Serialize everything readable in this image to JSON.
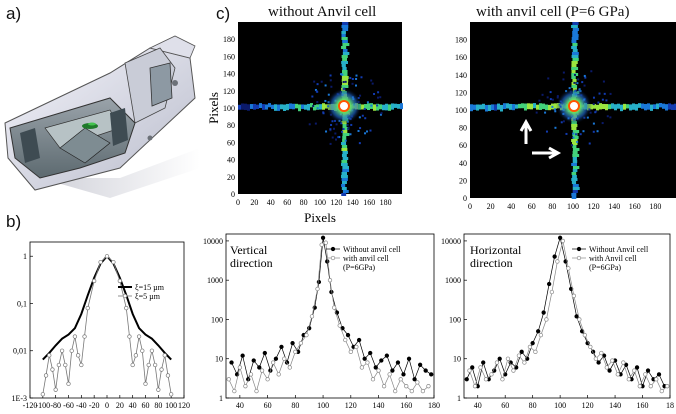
{
  "panel_labels": {
    "a": "a)",
    "b": "b)",
    "c": "c)"
  },
  "heatmaps": [
    {
      "title": "without Anvil cell",
      "xlabel": "Pixels",
      "ylabel": "Pixels",
      "xticks": [
        "0",
        "20",
        "40",
        "60",
        "80",
        "100",
        "120",
        "140",
        "160",
        "180"
      ],
      "yticks": [
        "0",
        "20",
        "40",
        "60",
        "80",
        "100",
        "120",
        "140",
        "160",
        "180"
      ]
    },
    {
      "title": "with anvil cell (P=6 GPa)",
      "xlabel": "",
      "ylabel": "",
      "xticks": [
        "0",
        "20",
        "40",
        "60",
        "80",
        "100",
        "120",
        "140",
        "160",
        "180"
      ],
      "yticks": [
        "0",
        "20",
        "40",
        "60",
        "80",
        "100",
        "120",
        "140",
        "160",
        "180"
      ]
    }
  ],
  "chart_data": [
    {
      "type": "line",
      "title": "",
      "xticks": [
        "-120",
        "-100",
        "-80",
        "-60",
        "-40",
        "-20",
        "0",
        "20",
        "40",
        "60",
        "80",
        "100",
        "120"
      ],
      "yticks": [
        "1",
        "0,1",
        "0,01",
        "1E-3"
      ],
      "xlim": [
        -120,
        120
      ],
      "ylim": [
        0.001,
        2
      ],
      "yscale": "log",
      "legend": [
        "ξ=15 µm",
        "ξ=5 µm"
      ],
      "series": [
        {
          "name": "ξ=15 µm",
          "x": [
            -100,
            -90,
            -80,
            -70,
            -60,
            -50,
            -40,
            -30,
            -20,
            -10,
            0,
            10,
            20,
            30,
            40,
            50,
            60,
            70,
            80,
            90,
            100
          ],
          "values": [
            0.0065,
            0.009,
            0.013,
            0.018,
            0.022,
            0.03,
            0.06,
            0.15,
            0.35,
            0.7,
            1.0,
            0.7,
            0.35,
            0.15,
            0.06,
            0.03,
            0.022,
            0.018,
            0.013,
            0.009,
            0.0065
          ]
        },
        {
          "name": "ξ=5 µm",
          "x": [
            -100,
            -95,
            -90,
            -85,
            -80,
            -75,
            -70,
            -65,
            -60,
            -55,
            -50,
            -45,
            -40,
            -35,
            -30,
            -20,
            -10,
            0,
            10,
            20,
            30,
            35,
            40,
            45,
            50,
            55,
            60,
            65,
            70,
            75,
            80,
            85,
            90,
            95,
            100
          ],
          "values": [
            0.0012,
            0.003,
            0.008,
            0.004,
            0.0015,
            0.005,
            0.01,
            0.005,
            0.002,
            0.01,
            0.02,
            0.008,
            0.005,
            0.02,
            0.08,
            0.3,
            0.75,
            1.0,
            0.75,
            0.3,
            0.08,
            0.02,
            0.005,
            0.008,
            0.02,
            0.01,
            0.002,
            0.005,
            0.01,
            0.005,
            0.0015,
            0.004,
            0.008,
            0.003,
            0.0012
          ]
        }
      ]
    },
    {
      "type": "line",
      "title": "Vertical direction",
      "title_lines": [
        "Vertical",
        "direction"
      ],
      "xticks": [
        "40",
        "60",
        "80",
        "100",
        "120",
        "140",
        "160",
        "180"
      ],
      "yticks": [
        "10000",
        "1000",
        "100",
        "10",
        "1"
      ],
      "xlim": [
        30,
        180
      ],
      "ylim": [
        1,
        15000
      ],
      "yscale": "log",
      "legend": [
        "Without anvil cell",
        "with anvil cell",
        "(P=6GPa)"
      ],
      "series": [
        {
          "name": "Without anvil cell",
          "x": [
            34,
            38,
            42,
            46,
            50,
            54,
            58,
            62,
            66,
            70,
            74,
            78,
            82,
            86,
            90,
            94,
            97,
            100,
            103,
            106,
            110,
            114,
            118,
            122,
            126,
            130,
            134,
            138,
            142,
            146,
            150,
            154,
            158,
            162,
            166,
            170,
            174,
            178
          ],
          "values": [
            8,
            4,
            12,
            3,
            9,
            6,
            14,
            5,
            10,
            20,
            8,
            25,
            15,
            40,
            60,
            200,
            900,
            12000,
            3000,
            500,
            150,
            60,
            40,
            20,
            30,
            10,
            14,
            6,
            9,
            12,
            5,
            8,
            4,
            10,
            3,
            7,
            5,
            4
          ]
        },
        {
          "name": "with anvil cell",
          "x": [
            32,
            36,
            40,
            44,
            48,
            52,
            56,
            60,
            64,
            68,
            72,
            76,
            80,
            84,
            88,
            92,
            96,
            99,
            102,
            105,
            108,
            112,
            116,
            120,
            124,
            128,
            132,
            136,
            140,
            144,
            148,
            152,
            156,
            160,
            164,
            168,
            172,
            176
          ],
          "values": [
            3,
            1.5,
            6,
            2,
            4,
            1.5,
            5,
            3,
            8,
            4,
            10,
            6,
            15,
            25,
            40,
            120,
            600,
            8000,
            9000,
            1000,
            200,
            70,
            30,
            15,
            20,
            6,
            8,
            3,
            5,
            2,
            4,
            1.5,
            3,
            2,
            1.5,
            2.5,
            1.5,
            2
          ]
        }
      ]
    },
    {
      "type": "line",
      "title": "Horizontal direction",
      "title_lines": [
        "Horizontal",
        "direction"
      ],
      "xticks": [
        "40",
        "60",
        "80",
        "100",
        "120",
        "140",
        "160",
        "18"
      ],
      "yticks": [
        "10000",
        "1000",
        "100",
        "10",
        "1"
      ],
      "xlim": [
        30,
        180
      ],
      "ylim": [
        1,
        15000
      ],
      "yscale": "log",
      "legend": [
        "Without Anvil cell",
        "with Anvil cell",
        "(P=6GPa)"
      ],
      "series": [
        {
          "name": "Without Anvil cell",
          "x": [
            32,
            36,
            40,
            44,
            48,
            52,
            56,
            60,
            64,
            68,
            72,
            76,
            80,
            84,
            88,
            92,
            96,
            100,
            104,
            108,
            112,
            116,
            120,
            124,
            128,
            132,
            136,
            140,
            144,
            148,
            152,
            156,
            160,
            164,
            168,
            172,
            176
          ],
          "values": [
            3,
            6,
            2,
            8,
            3,
            5,
            10,
            4,
            8,
            6,
            15,
            10,
            25,
            50,
            150,
            800,
            4000,
            12000,
            3000,
            600,
            120,
            50,
            25,
            15,
            8,
            12,
            5,
            9,
            4,
            7,
            3,
            6,
            2,
            5,
            3,
            4,
            2
          ]
        },
        {
          "name": "with Anvil cell",
          "x": [
            34,
            38,
            42,
            46,
            50,
            54,
            58,
            62,
            66,
            70,
            74,
            78,
            82,
            86,
            90,
            94,
            98,
            102,
            106,
            110,
            114,
            118,
            122,
            126,
            130,
            134,
            138,
            142,
            146,
            150,
            154,
            158,
            162,
            166,
            170,
            174,
            178
          ],
          "values": [
            5,
            2,
            6,
            3,
            4,
            8,
            3,
            10,
            5,
            12,
            8,
            20,
            15,
            40,
            100,
            500,
            3000,
            10000,
            2000,
            400,
            100,
            40,
            20,
            10,
            14,
            6,
            9,
            4,
            8,
            3,
            5,
            2,
            4,
            2,
            3,
            1.5,
            2
          ]
        }
      ]
    }
  ]
}
